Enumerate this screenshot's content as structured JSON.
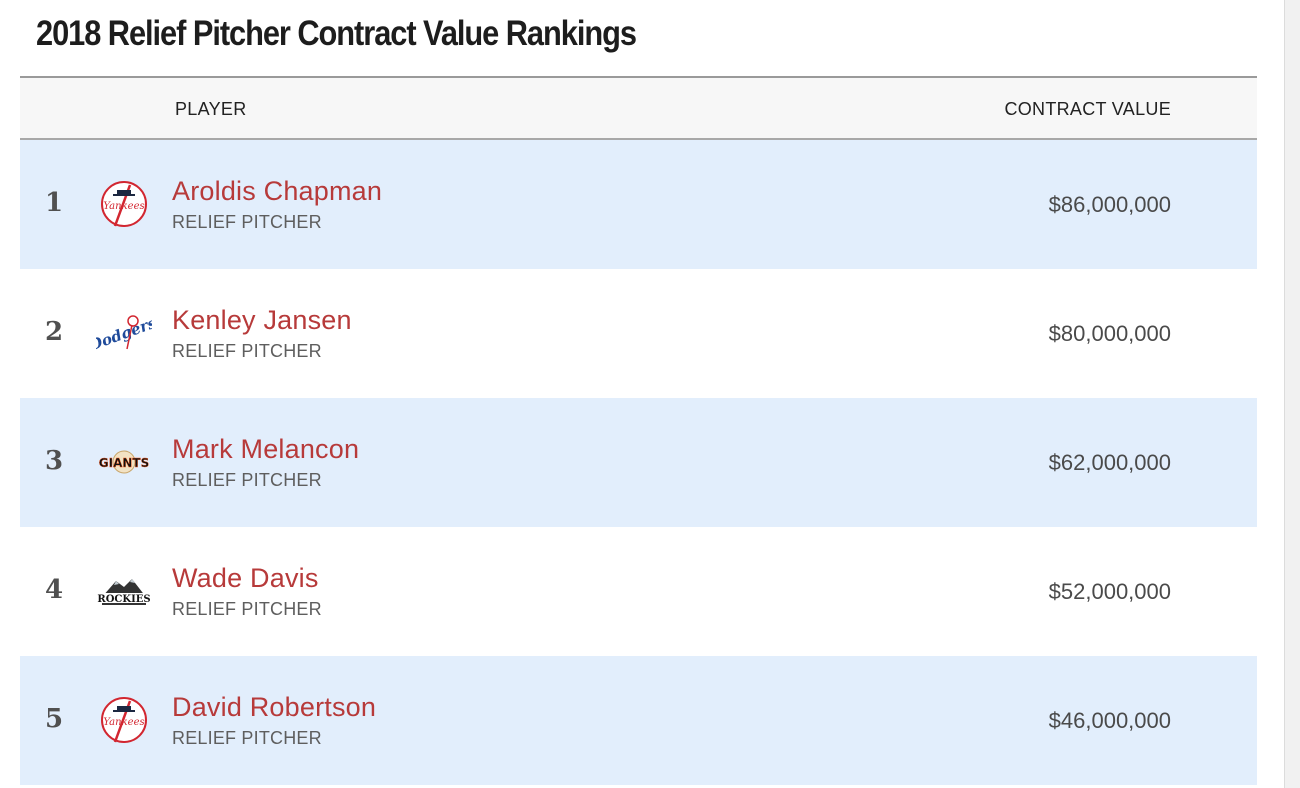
{
  "page": {
    "title": "2018 Relief Pitcher Contract Value Rankings"
  },
  "table": {
    "headers": {
      "player": "PLAYER",
      "value": "CONTRACT VALUE"
    },
    "rows": [
      {
        "rank": "1",
        "name": "Aroldis Chapman",
        "position": "RELIEF PITCHER",
        "value": "$86,000,000",
        "team_icon": "yankees-logo-icon"
      },
      {
        "rank": "2",
        "name": "Kenley Jansen",
        "position": "RELIEF PITCHER",
        "value": "$80,000,000",
        "team_icon": "dodgers-logo-icon"
      },
      {
        "rank": "3",
        "name": "Mark Melancon",
        "position": "RELIEF PITCHER",
        "value": "$62,000,000",
        "team_icon": "giants-logo-icon"
      },
      {
        "rank": "4",
        "name": "Wade Davis",
        "position": "RELIEF PITCHER",
        "value": "$52,000,000",
        "team_icon": "rockies-logo-icon"
      },
      {
        "rank": "5",
        "name": "David Robertson",
        "position": "RELIEF PITCHER",
        "value": "$46,000,000",
        "team_icon": "yankees-logo-icon"
      }
    ]
  },
  "colors": {
    "row_alt": "#e2eefc",
    "name_link": "#b73a3a"
  }
}
